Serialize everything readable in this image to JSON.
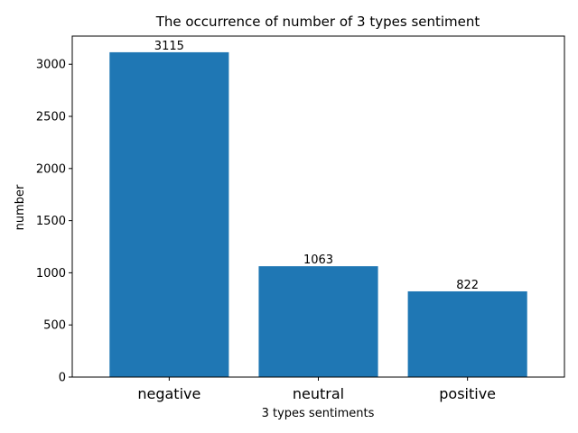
{
  "chart_data": {
    "type": "bar",
    "title": "The occurrence of number of 3 types sentiment",
    "xlabel": "3 types sentiments",
    "ylabel": "number",
    "categories": [
      "negative",
      "neutral",
      "positive"
    ],
    "values": [
      3115,
      1063,
      822
    ],
    "data_labels": [
      "3115",
      "1063",
      "822"
    ],
    "ylim": [
      0,
      3270
    ],
    "yticks": [
      0,
      500,
      1000,
      1500,
      2000,
      2500,
      3000
    ],
    "grid": false,
    "bar_color": "#1f77b4"
  }
}
